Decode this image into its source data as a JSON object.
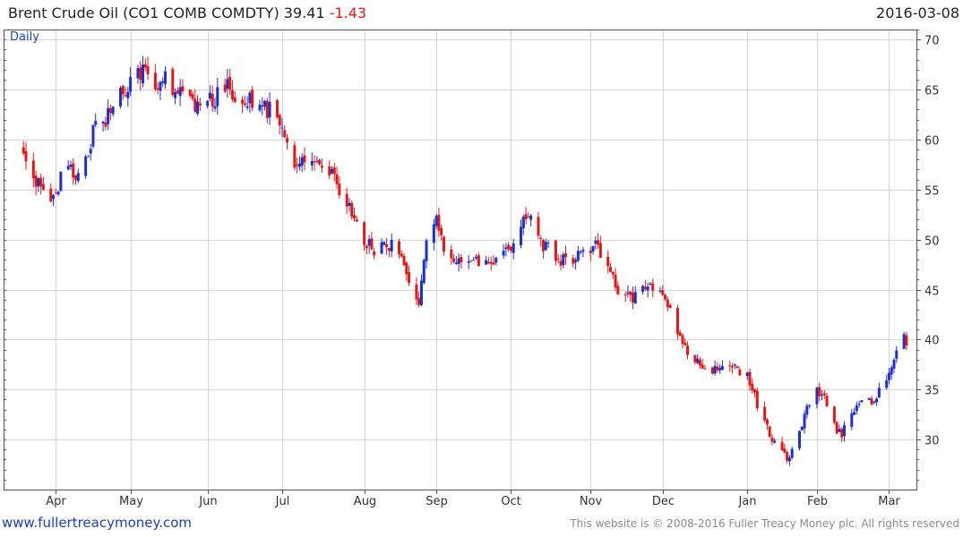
{
  "header": {
    "instrument": "Brent Crude Oil",
    "ticker": "(CO1 COMB COMDTY)",
    "last_price": "39.41",
    "change": "-1.43",
    "date": "2016-03-08"
  },
  "footer": {
    "left_text": "www.fullertreacymoney.com",
    "right_text": "This website is © 2008-2016 Fuller Treacy Money plc. All rights reserved"
  },
  "colors": {
    "up": "#1f2fcf",
    "down": "#e01818",
    "grid": "#d4d4d4",
    "axis": "#555555",
    "label": "#333333",
    "period_label": "#1f3fb0"
  },
  "chart_data": {
    "type": "candlestick",
    "title": "",
    "period_label": "Daily",
    "ylim": [
      25,
      71
    ],
    "y_ticks": [
      30,
      35,
      40,
      45,
      50,
      55,
      60,
      65,
      70
    ],
    "y_axis_side": "right",
    "x_range": [
      "2015-03-19",
      "2016-03-08"
    ],
    "x_ticks": [
      {
        "label": "Apr",
        "date": "2015-04-01"
      },
      {
        "label": "May",
        "date": "2015-05-01"
      },
      {
        "label": "Jun",
        "date": "2015-06-01"
      },
      {
        "label": "Jul",
        "date": "2015-07-01"
      },
      {
        "label": "Aug",
        "date": "2015-08-03"
      },
      {
        "label": "Sep",
        "date": "2015-09-01"
      },
      {
        "label": "Oct",
        "date": "2015-10-01"
      },
      {
        "label": "Nov",
        "date": "2015-11-02"
      },
      {
        "label": "Dec",
        "date": "2015-12-01"
      },
      {
        "label": "Jan",
        "date": "2016-01-04"
      },
      {
        "label": "Feb",
        "date": "2016-02-01"
      },
      {
        "label": "Mar",
        "date": "2016-03-01"
      }
    ],
    "grid": true,
    "close_path": [
      [
        "2015-03-19",
        59.2
      ],
      [
        "2015-03-23",
        56.5
      ],
      [
        "2015-03-26",
        55.0
      ],
      [
        "2015-03-30",
        53.5
      ],
      [
        "2015-04-02",
        55.5
      ],
      [
        "2015-04-06",
        58.0
      ],
      [
        "2015-04-09",
        55.5
      ],
      [
        "2015-04-14",
        58.5
      ],
      [
        "2015-04-17",
        62.5
      ],
      [
        "2015-04-21",
        62.0
      ],
      [
        "2015-04-24",
        64.0
      ],
      [
        "2015-04-29",
        65.0
      ],
      [
        "2015-05-04",
        66.5
      ],
      [
        "2015-05-07",
        67.0
      ],
      [
        "2015-05-12",
        65.5
      ],
      [
        "2015-05-15",
        66.5
      ],
      [
        "2015-05-20",
        64.5
      ],
      [
        "2015-05-26",
        63.5
      ],
      [
        "2015-05-29",
        63.0
      ],
      [
        "2015-06-03",
        64.0
      ],
      [
        "2015-06-09",
        65.5
      ],
      [
        "2015-06-12",
        63.5
      ],
      [
        "2015-06-17",
        64.0
      ],
      [
        "2015-06-22",
        63.0
      ],
      [
        "2015-06-26",
        63.0
      ],
      [
        "2015-07-01",
        62.0
      ],
      [
        "2015-07-06",
        57.0
      ],
      [
        "2015-07-10",
        58.5
      ],
      [
        "2015-07-15",
        57.5
      ],
      [
        "2015-07-20",
        57.0
      ],
      [
        "2015-07-24",
        54.5
      ],
      [
        "2015-07-29",
        53.0
      ],
      [
        "2015-08-03",
        49.8
      ],
      [
        "2015-08-07",
        49.0
      ],
      [
        "2015-08-12",
        49.5
      ],
      [
        "2015-08-17",
        49.0
      ],
      [
        "2015-08-21",
        45.5
      ],
      [
        "2015-08-25",
        43.0
      ],
      [
        "2015-08-28",
        50.0
      ],
      [
        "2015-09-01",
        52.0
      ],
      [
        "2015-09-04",
        49.5
      ],
      [
        "2015-09-09",
        48.0
      ],
      [
        "2015-09-14",
        48.5
      ],
      [
        "2015-09-18",
        48.0
      ],
      [
        "2015-09-23",
        48.0
      ],
      [
        "2015-09-28",
        48.5
      ],
      [
        "2015-10-01",
        49.0
      ],
      [
        "2015-10-06",
        52.5
      ],
      [
        "2015-10-09",
        52.5
      ],
      [
        "2015-10-13",
        49.5
      ],
      [
        "2015-10-16",
        49.0
      ],
      [
        "2015-10-21",
        48.0
      ],
      [
        "2015-10-26",
        47.5
      ],
      [
        "2015-10-30",
        49.0
      ],
      [
        "2015-11-04",
        49.5
      ],
      [
        "2015-11-09",
        47.5
      ],
      [
        "2015-11-13",
        44.5
      ],
      [
        "2015-11-18",
        44.0
      ],
      [
        "2015-11-23",
        45.0
      ],
      [
        "2015-11-27",
        45.5
      ],
      [
        "2015-12-02",
        44.5
      ],
      [
        "2015-12-07",
        40.5
      ],
      [
        "2015-12-11",
        38.5
      ],
      [
        "2015-12-16",
        37.5
      ],
      [
        "2015-12-21",
        36.5
      ],
      [
        "2015-12-24",
        37.5
      ],
      [
        "2015-12-30",
        37.0
      ],
      [
        "2016-01-04",
        36.5
      ],
      [
        "2016-01-08",
        33.5
      ],
      [
        "2016-01-13",
        30.5
      ],
      [
        "2016-01-18",
        28.5
      ],
      [
        "2016-01-20",
        28.0
      ],
      [
        "2016-01-25",
        31.0
      ],
      [
        "2016-01-28",
        33.0
      ],
      [
        "2016-02-01",
        35.0
      ],
      [
        "2016-02-04",
        34.5
      ],
      [
        "2016-02-09",
        31.0
      ],
      [
        "2016-02-11",
        30.5
      ],
      [
        "2016-02-16",
        33.0
      ],
      [
        "2016-02-19",
        33.5
      ],
      [
        "2016-02-24",
        34.0
      ],
      [
        "2016-03-01",
        36.5
      ],
      [
        "2016-03-04",
        38.5
      ],
      [
        "2016-03-07",
        40.8
      ],
      [
        "2016-03-08",
        39.41
      ]
    ]
  }
}
